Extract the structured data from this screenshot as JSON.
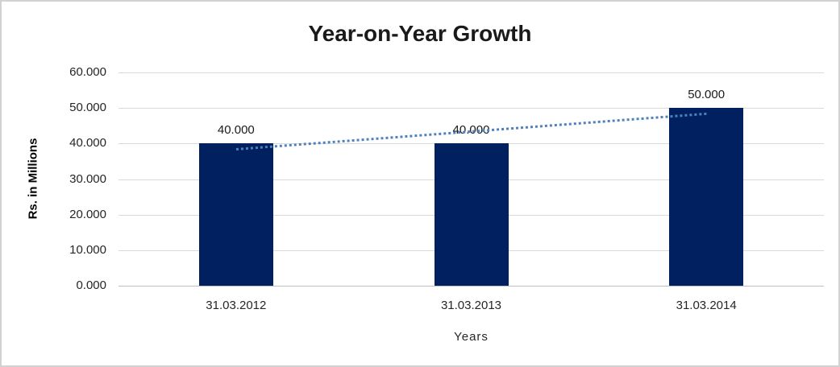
{
  "window": {
    "background": "#FFFFFF",
    "border_color": "#D2D2D2"
  },
  "chart_data": {
    "type": "bar",
    "title": "Year-on-Year Growth",
    "categories": [
      "31.03.2012",
      "31.03.2013",
      "31.03.2014"
    ],
    "values": [
      40.0,
      40.0,
      50.0
    ],
    "data_labels": [
      "40.000",
      "40.000",
      "50.000"
    ],
    "xlabel": "Years",
    "ylabel": "Rs. in Millions",
    "ylim": [
      0,
      60
    ],
    "ytick_step": 10,
    "ytick_labels": [
      "60.000",
      "50.000",
      "40.000",
      "30.000",
      "20.000",
      "10.000",
      "0.000"
    ],
    "grid": true,
    "legend": "none",
    "bar_color": "#002060",
    "gridline_color": "#D9D9D9",
    "axis_line_color": "#BFBFBF",
    "trendline": {
      "style": "dotted",
      "color": "#4F81BD",
      "fit_start": 38.33,
      "fit_end": 48.33
    }
  }
}
